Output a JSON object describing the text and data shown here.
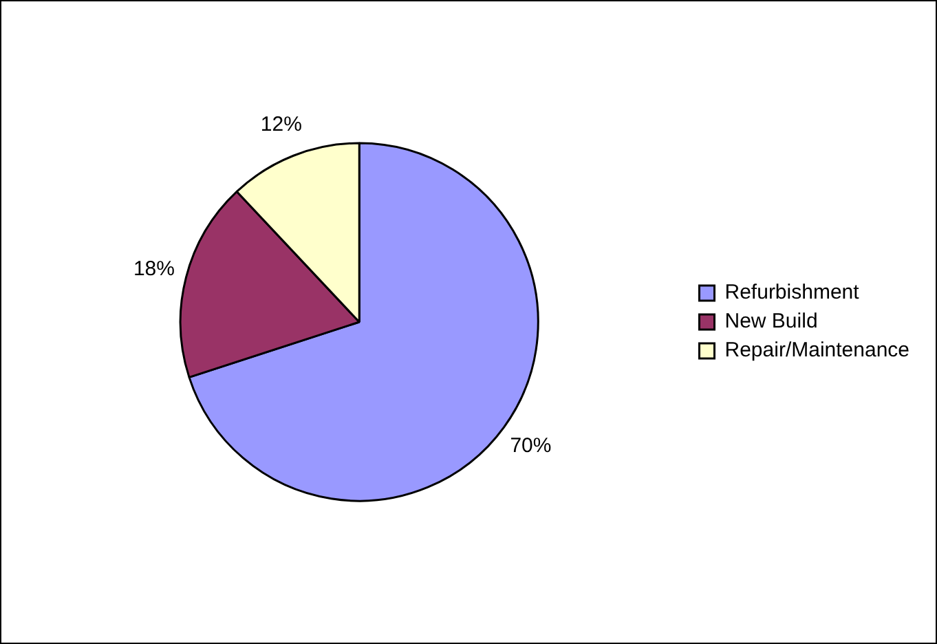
{
  "chart_data": {
    "type": "pie",
    "categories": [
      "Refurbishment",
      "New Build",
      "Repair/Maintenance"
    ],
    "values": [
      70,
      18,
      12
    ],
    "colors": [
      "#9999ff",
      "#993366",
      "#ffffcc"
    ],
    "value_labels": [
      "70%",
      "18%",
      "12%"
    ],
    "legend": "right"
  }
}
